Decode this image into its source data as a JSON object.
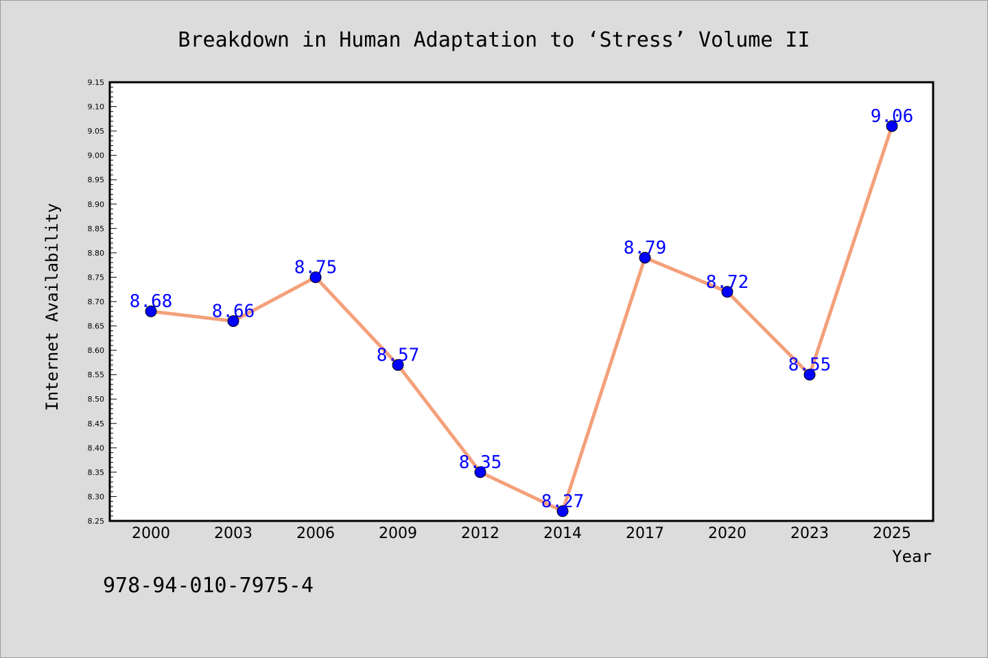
{
  "chart_data": {
    "type": "line",
    "title": "Breakdown in Human Adaptation to ‘Stress’ Volume II",
    "xlabel": "Year",
    "ylabel": "Internet Availability",
    "categories": [
      "2000",
      "2003",
      "2006",
      "2009",
      "2012",
      "2014",
      "2017",
      "2020",
      "2023",
      "2025"
    ],
    "values": [
      8.68,
      8.66,
      8.75,
      8.57,
      8.35,
      8.27,
      8.79,
      8.72,
      8.55,
      9.06
    ],
    "data_labels": [
      "8.68",
      "8.66",
      "8.75",
      "8.57",
      "8.35",
      "8.27",
      "8.79",
      "8.72",
      "8.55",
      "9.06"
    ],
    "ylim": [
      8.25,
      9.15
    ],
    "yticks": [
      "8.25",
      "8.30",
      "8.35",
      "8.40",
      "8.45",
      "8.50",
      "8.55",
      "8.60",
      "8.65",
      "8.70",
      "8.75",
      "8.80",
      "8.85",
      "8.90",
      "8.95",
      "9.00",
      "9.05",
      "9.10",
      "9.15"
    ],
    "grid": false,
    "line_color": "#f4a07a",
    "marker_color": "#0000ff",
    "label_color": "#0000ff",
    "background_color": "#dcdcdc",
    "plot_background": "#ffffff"
  },
  "annotation": {
    "isbn": "978-94-010-7975-4"
  }
}
